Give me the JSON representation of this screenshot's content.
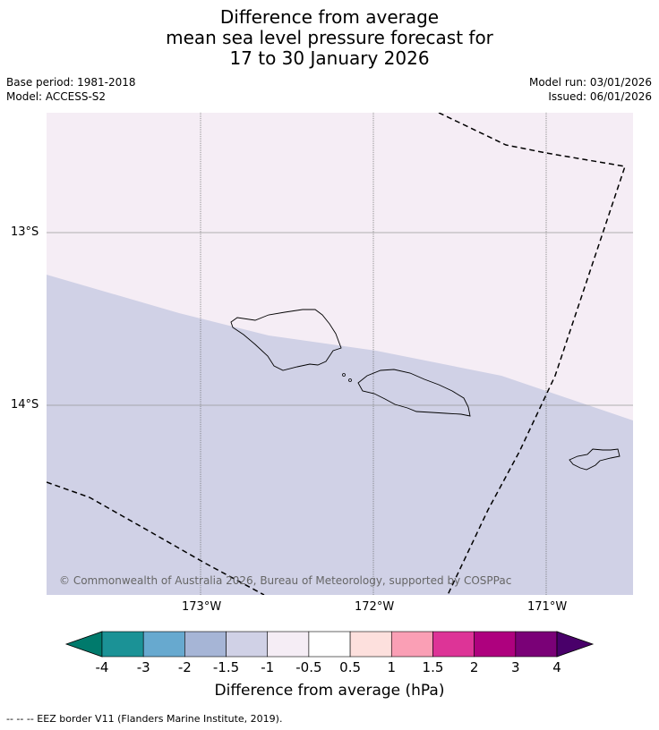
{
  "title": {
    "line1": "Difference from average",
    "line2": "mean sea level pressure forecast for",
    "line3": "17 to 30 January 2026"
  },
  "meta": {
    "base_period": "Base period: 1981-2018",
    "model": "Model: ACCESS-S2",
    "model_run": "Model run: 03/01/2026",
    "issued": "Issued: 06/01/2026"
  },
  "map": {
    "lat_labels": [
      "13°S",
      "14°S"
    ],
    "lon_labels": [
      "173°W",
      "172°W",
      "171°W"
    ],
    "copyright": "© Commonwealth of Australia 2026, Bureau of Meteorology, supported by COSPPac",
    "colors": {
      "upper_region": "#f5edf5",
      "lower_region": "#d0d1e6",
      "grid": "#888888",
      "coast": "#000000",
      "eez": "#000000"
    }
  },
  "colorbar": {
    "ticks": [
      "-4",
      "-3",
      "-2",
      "-1.5",
      "-1",
      "-0.5",
      "0.5",
      "1",
      "1.5",
      "2",
      "3",
      "4"
    ],
    "colors": [
      "#007a6c",
      "#1b9296",
      "#67a9cf",
      "#a6b5d6",
      "#d0d1e6",
      "#f5edf5",
      "#ffffff",
      "#fde0dd",
      "#fa9fb5",
      "#dd3497",
      "#ae017e",
      "#7a0177",
      "#49006a"
    ],
    "label": "Difference from average (hPa)"
  },
  "footnote": "--  --  -- EEZ border V11 (Flanders Marine Institute, 2019)."
}
